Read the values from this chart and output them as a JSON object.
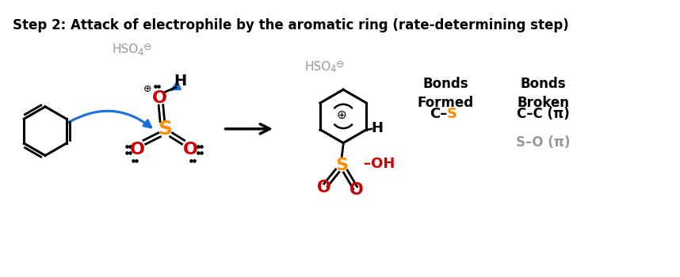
{
  "title": "Step 2: Attack of electrophile by the aromatic ring (rate-determining step)",
  "title_fontsize": 12,
  "title_fontweight": "bold",
  "bg_color": "#ffffff",
  "bonds_formed_header": "Bonds\nFormed",
  "bonds_broken_header": "Bonds\nBroken",
  "orange": "#FF8C00",
  "red": "#CC0000",
  "blue": "#1a6fdb",
  "gray": "#999999",
  "black": "#000000"
}
